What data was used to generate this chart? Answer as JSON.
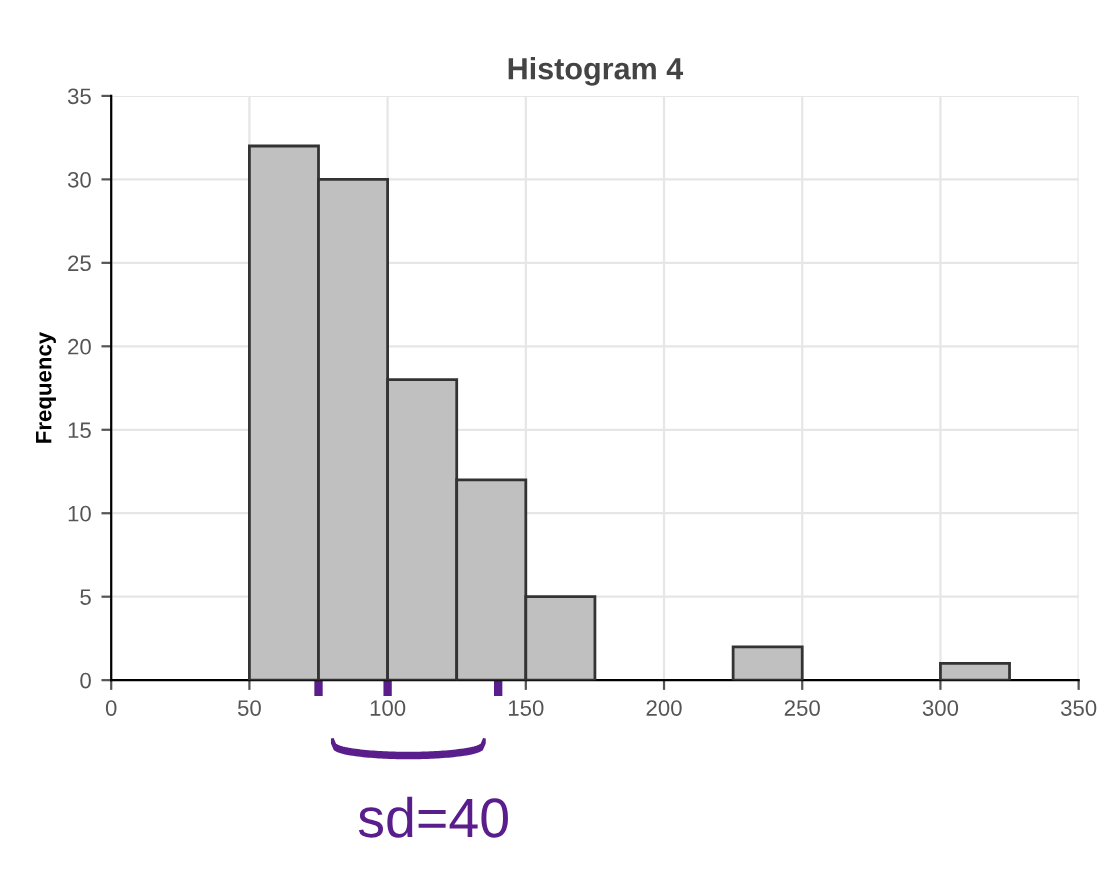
{
  "chart_data": {
    "type": "histogram",
    "title": "Histogram 4",
    "ylabel": "Frequency",
    "bins": [
      50,
      75,
      100,
      125,
      150,
      175,
      200,
      225,
      250,
      275,
      300,
      325
    ],
    "values": [
      32,
      30,
      18,
      12,
      5,
      0,
      0,
      2,
      0,
      0,
      1
    ],
    "color": "#c0c0c0",
    "xlim": [
      0,
      350
    ],
    "xticks": [
      0,
      50,
      100,
      150,
      200,
      250,
      300,
      350
    ],
    "ylim": [
      0,
      35
    ],
    "yticks": [
      0,
      5,
      10,
      15,
      20,
      25,
      30,
      35
    ],
    "grid": true,
    "annotations": [
      "sd=40"
    ]
  }
}
